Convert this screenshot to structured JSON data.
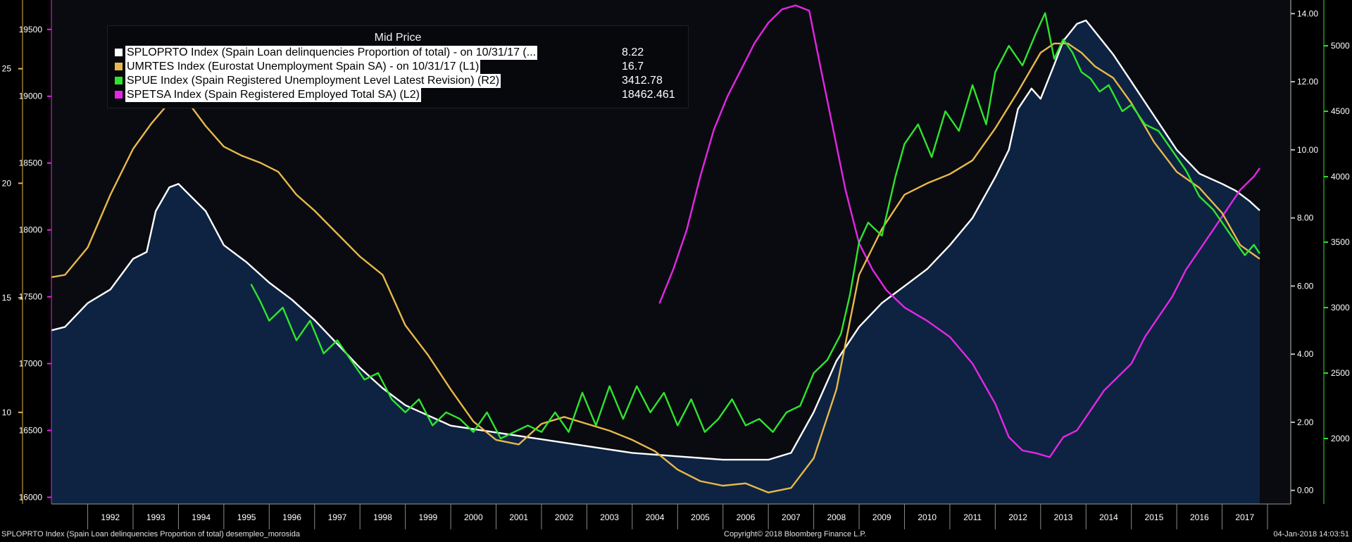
{
  "chart_data": {
    "type": "area",
    "title": "Mid Price",
    "colors": {
      "background": "#000000",
      "plot_background": "#0a0b10",
      "area_fill": "#0d2341",
      "white": "#ffffff",
      "yellow": "#e8b84a",
      "green": "#2ee52e",
      "magenta": "#e526e5",
      "axis_green": "#2ee52e",
      "axis_yellow": "#e8b84a",
      "axis_magenta": "#e526e5"
    },
    "legend": [
      {
        "label": "SPLOPRTO Index (Spain Loan delinquencies Proportion of total) -  on 10/31/17  (...",
        "value": "8.22",
        "color": "#ffffff"
      },
      {
        "label": "UMRTES Index (Eurostat Unemployment Spain SA) -  on 10/31/17  (L1)",
        "value": "16.7",
        "color": "#e8b84a"
      },
      {
        "label": "SPUE Index (Spain Registered Unemployment Level Latest Revision)  (R2)",
        "value": "3412.78",
        "color": "#2ee52e"
      },
      {
        "label": "SPETSA Index (Spain Registered Employed Total SA)  (L2)",
        "value": "18462.461",
        "color": "#e526e5"
      }
    ],
    "x_axis": {
      "type": "time",
      "range": [
        1991.2,
        2018.0
      ],
      "labels": [
        "1992",
        "1993",
        "1994",
        "1995",
        "1996",
        "1997",
        "1998",
        "1999",
        "2000",
        "2001",
        "2002",
        "2003",
        "2004",
        "2005",
        "2006",
        "2007",
        "2008",
        "2009",
        "2010",
        "2011",
        "2012",
        "2013",
        "2014",
        "2015",
        "2016",
        "2017"
      ]
    },
    "axes": {
      "left_outer": {
        "range": [
          6,
          28
        ],
        "ticks": [
          "10",
          "15",
          "20",
          "25"
        ],
        "tick_values": [
          10,
          15,
          20,
          25
        ],
        "series": "UMRTES"
      },
      "left_inner": {
        "range": [
          15950,
          19720
        ],
        "ticks": [
          "16000",
          "16500",
          "17000",
          "17500",
          "18000",
          "18500",
          "19000",
          "19500"
        ],
        "tick_values": [
          16000,
          16500,
          17000,
          17500,
          18000,
          18500,
          19000,
          19500
        ],
        "series": "SPETSA"
      },
      "right_inner": {
        "range": [
          -0.4,
          14.4
        ],
        "ticks": [
          "0.00",
          "2.00",
          "4.00",
          "6.00",
          "8.00",
          "10.00",
          "12.00",
          "14.00"
        ],
        "tick_values": [
          0,
          2,
          4,
          6,
          8,
          10,
          12,
          14
        ],
        "series": "SPLOPRTO"
      },
      "right_outer": {
        "range": [
          1500,
          5350
        ],
        "ticks": [
          "2000",
          "2500",
          "3000",
          "3500",
          "4000",
          "4500",
          "5000"
        ],
        "tick_values": [
          2000,
          2500,
          3000,
          3500,
          4000,
          4500,
          5000
        ],
        "series": "SPUE"
      }
    },
    "series": [
      {
        "name": "SPLOPRTO",
        "axis": "right_inner",
        "color": "#ffffff",
        "fill": true,
        "x": [
          1991.2,
          1991.5,
          1992.0,
          1992.5,
          1993.0,
          1993.3,
          1993.5,
          1993.8,
          1994.0,
          1994.3,
          1994.6,
          1995.0,
          1995.5,
          1996.0,
          1996.5,
          1997.0,
          1997.5,
          1998.0,
          1998.5,
          1999.0,
          1999.5,
          2000.0,
          2001.0,
          2002.0,
          2003.0,
          2004.0,
          2005.0,
          2006.0,
          2007.0,
          2007.5,
          2008.0,
          2008.5,
          2009.0,
          2009.5,
          2010.0,
          2010.5,
          2011.0,
          2011.5,
          2012.0,
          2012.3,
          2012.5,
          2012.8,
          2013.0,
          2013.3,
          2013.5,
          2013.8,
          2014.0,
          2014.3,
          2014.6,
          2015.0,
          2015.5,
          2016.0,
          2016.5,
          2017.0,
          2017.3,
          2017.6,
          2017.83
        ],
        "values": [
          4.7,
          4.8,
          5.5,
          5.9,
          6.8,
          7.0,
          8.2,
          8.9,
          9.0,
          8.6,
          8.2,
          7.2,
          6.7,
          6.1,
          5.6,
          5.0,
          4.3,
          3.6,
          3.0,
          2.5,
          2.2,
          1.9,
          1.7,
          1.5,
          1.3,
          1.1,
          1.0,
          0.9,
          0.9,
          1.1,
          2.3,
          3.8,
          4.8,
          5.5,
          6.0,
          6.5,
          7.2,
          8.0,
          9.2,
          10.0,
          11.2,
          11.8,
          11.5,
          12.5,
          13.2,
          13.7,
          13.8,
          13.3,
          12.8,
          12.0,
          11.0,
          10.0,
          9.3,
          9.0,
          8.8,
          8.5,
          8.22
        ]
      },
      {
        "name": "UMRTES",
        "axis": "left_outer",
        "color": "#e8b84a",
        "x": [
          1991.2,
          1991.5,
          1992.0,
          1992.5,
          1993.0,
          1993.4,
          1993.7,
          1994.0,
          1994.3,
          1994.6,
          1995.0,
          1995.4,
          1995.8,
          1996.2,
          1996.6,
          1997.0,
          1997.5,
          1998.0,
          1998.5,
          1999.0,
          1999.5,
          2000.0,
          2000.5,
          2001.0,
          2001.5,
          2002.0,
          2002.5,
          2003.0,
          2003.5,
          2004.0,
          2004.5,
          2005.0,
          2005.5,
          2006.0,
          2006.5,
          2007.0,
          2007.5,
          2008.0,
          2008.5,
          2009.0,
          2009.5,
          2010.0,
          2010.5,
          2011.0,
          2011.5,
          2012.0,
          2012.5,
          2013.0,
          2013.3,
          2013.6,
          2013.9,
          2014.2,
          2014.6,
          2015.0,
          2015.5,
          2016.0,
          2016.5,
          2017.0,
          2017.4,
          2017.83
        ],
        "values": [
          15.9,
          16.0,
          17.2,
          19.5,
          21.5,
          22.6,
          23.3,
          23.6,
          23.3,
          22.5,
          21.6,
          21.2,
          20.9,
          20.5,
          19.5,
          18.8,
          17.8,
          16.8,
          16.0,
          13.8,
          12.5,
          11.0,
          9.6,
          8.8,
          8.6,
          9.5,
          9.8,
          9.5,
          9.2,
          8.8,
          8.3,
          7.5,
          7.0,
          6.8,
          6.9,
          6.5,
          6.7,
          8.0,
          11.0,
          16.0,
          18.0,
          19.5,
          20.0,
          20.4,
          21.0,
          22.4,
          24.0,
          25.7,
          26.1,
          26.1,
          25.7,
          25.1,
          24.6,
          23.5,
          21.8,
          20.5,
          19.8,
          18.7,
          17.3,
          16.7
        ]
      },
      {
        "name": "SPUE",
        "axis": "right_outer",
        "color": "#2ee52e",
        "x": [
          1995.6,
          1995.8,
          1996.0,
          1996.3,
          1996.6,
          1996.9,
          1997.2,
          1997.5,
          1997.8,
          1998.1,
          1998.4,
          1998.7,
          1999.0,
          1999.3,
          1999.6,
          1999.9,
          2000.2,
          2000.5,
          2000.8,
          2001.1,
          2001.4,
          2001.7,
          2002.0,
          2002.3,
          2002.6,
          2002.9,
          2003.2,
          2003.5,
          2003.8,
          2004.1,
          2004.4,
          2004.7,
          2005.0,
          2005.3,
          2005.6,
          2005.9,
          2006.2,
          2006.5,
          2006.8,
          2007.1,
          2007.4,
          2007.7,
          2008.0,
          2008.3,
          2008.6,
          2008.8,
          2009.0,
          2009.2,
          2009.5,
          2009.8,
          2010.0,
          2010.3,
          2010.6,
          2010.9,
          2011.2,
          2011.5,
          2011.8,
          2012.0,
          2012.3,
          2012.6,
          2012.9,
          2013.1,
          2013.3,
          2013.5,
          2013.7,
          2013.9,
          2014.1,
          2014.3,
          2014.5,
          2014.8,
          2015.0,
          2015.3,
          2015.6,
          2015.9,
          2016.2,
          2016.5,
          2016.8,
          2017.0,
          2017.2,
          2017.5,
          2017.7,
          2017.83
        ],
        "values": [
          3180,
          3050,
          2900,
          3000,
          2750,
          2900,
          2650,
          2750,
          2600,
          2450,
          2500,
          2300,
          2200,
          2300,
          2100,
          2200,
          2150,
          2050,
          2200,
          2000,
          2050,
          2100,
          2050,
          2200,
          2050,
          2350,
          2100,
          2400,
          2150,
          2400,
          2200,
          2350,
          2100,
          2300,
          2050,
          2150,
          2300,
          2100,
          2150,
          2050,
          2200,
          2250,
          2500,
          2600,
          2800,
          3100,
          3500,
          3650,
          3550,
          4000,
          4250,
          4400,
          4150,
          4500,
          4350,
          4700,
          4400,
          4800,
          5000,
          4850,
          5100,
          5250,
          4900,
          5050,
          4950,
          4800,
          4750,
          4650,
          4700,
          4500,
          4550,
          4400,
          4350,
          4200,
          4050,
          3850,
          3750,
          3650,
          3550,
          3400,
          3480,
          3412.78
        ]
      },
      {
        "name": "SPETSA",
        "axis": "left_inner",
        "color": "#e526e5",
        "x": [
          2004.6,
          2004.9,
          2005.2,
          2005.5,
          2005.8,
          2006.1,
          2006.4,
          2006.7,
          2007.0,
          2007.3,
          2007.6,
          2007.9,
          2008.1,
          2008.4,
          2008.7,
          2009.0,
          2009.3,
          2009.6,
          2010.0,
          2010.5,
          2011.0,
          2011.5,
          2012.0,
          2012.3,
          2012.6,
          2012.9,
          2013.2,
          2013.5,
          2013.8,
          2014.1,
          2014.4,
          2014.7,
          2015.0,
          2015.3,
          2015.6,
          2015.9,
          2016.2,
          2016.5,
          2016.8,
          2017.1,
          2017.4,
          2017.7,
          2017.83
        ],
        "values": [
          17450,
          17700,
          18000,
          18400,
          18750,
          19000,
          19200,
          19400,
          19550,
          19650,
          19680,
          19640,
          19300,
          18800,
          18300,
          17900,
          17700,
          17550,
          17420,
          17320,
          17200,
          17000,
          16700,
          16450,
          16350,
          16330,
          16300,
          16450,
          16500,
          16650,
          16800,
          16900,
          17000,
          17200,
          17350,
          17500,
          17700,
          17850,
          18000,
          18150,
          18300,
          18400,
          18462.461
        ]
      }
    ]
  },
  "footer": {
    "left": "SPLOPRTO Index (Spain Loan delinquencies Proportion of total) desempleo_morosida",
    "center": "Copyright© 2018 Bloomberg Finance L.P.",
    "right": "04-Jan-2018 14:03:51"
  }
}
